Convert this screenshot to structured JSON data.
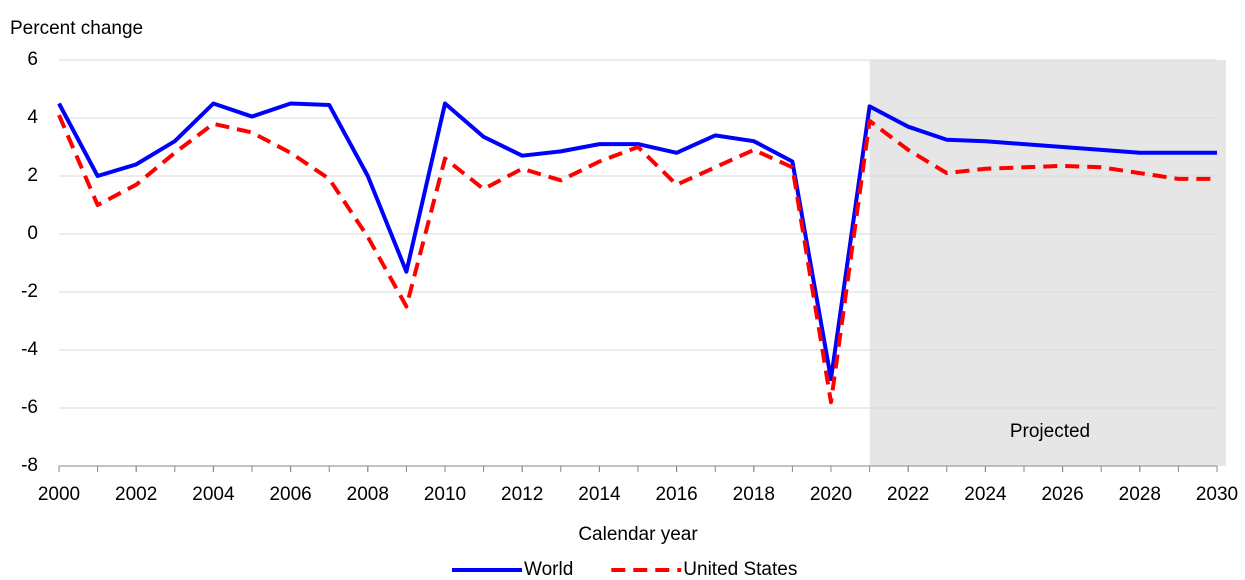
{
  "chart_data": {
    "type": "line",
    "y_label": "Percent change",
    "x_label": "Calendar year",
    "annotation": "Projected",
    "shaded_region": [
      2021,
      2030
    ],
    "x": [
      2000,
      2001,
      2002,
      2003,
      2004,
      2005,
      2006,
      2007,
      2008,
      2009,
      2010,
      2011,
      2012,
      2013,
      2014,
      2015,
      2016,
      2017,
      2018,
      2019,
      2020,
      2021,
      2022,
      2023,
      2024,
      2025,
      2026,
      2027,
      2028,
      2029,
      2030
    ],
    "series": [
      {
        "name": "World",
        "color": "#0000ff",
        "dash": false,
        "values": [
          4.5,
          2.0,
          2.4,
          3.2,
          4.5,
          4.05,
          4.5,
          4.45,
          2.0,
          -1.3,
          4.5,
          3.35,
          2.7,
          2.85,
          3.1,
          3.1,
          2.8,
          3.4,
          3.2,
          2.5,
          -5.0,
          4.4,
          3.7,
          3.25,
          3.2,
          3.1,
          3.0,
          2.9,
          2.8,
          2.8,
          2.8
        ]
      },
      {
        "name": "United States",
        "color": "#ff0000",
        "dash": true,
        "values": [
          4.1,
          1.0,
          1.7,
          2.8,
          3.8,
          3.5,
          2.8,
          1.9,
          -0.1,
          -2.5,
          2.6,
          1.55,
          2.25,
          1.85,
          2.5,
          3.0,
          1.7,
          2.3,
          2.9,
          2.3,
          -5.8,
          3.9,
          2.9,
          2.1,
          2.25,
          2.3,
          2.35,
          2.3,
          2.1,
          1.9,
          1.9
        ]
      }
    ],
    "xlim": [
      2000,
      2030
    ],
    "xticks": [
      2000,
      2002,
      2004,
      2006,
      2008,
      2010,
      2012,
      2014,
      2016,
      2018,
      2020,
      2022,
      2024,
      2026,
      2028,
      2030
    ],
    "ylim": [
      -8,
      6
    ],
    "yticks": [
      -8,
      -6,
      -4,
      -2,
      0,
      2,
      4,
      6
    ],
    "grid": true,
    "legend": "bottom"
  }
}
